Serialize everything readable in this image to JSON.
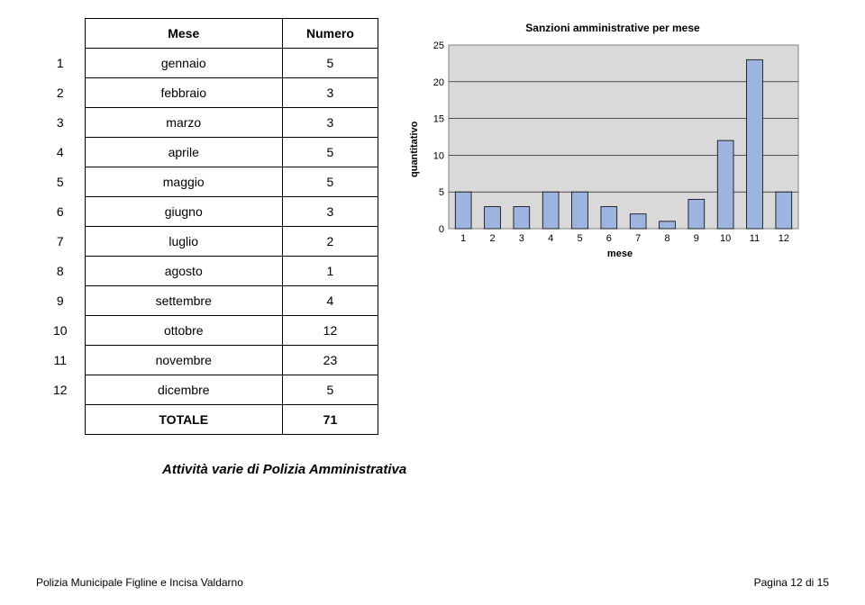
{
  "table": {
    "header_mese": "Mese",
    "header_numero": "Numero",
    "rows": [
      {
        "idx": "1",
        "mese": "gennaio",
        "numero": "5"
      },
      {
        "idx": "2",
        "mese": "febbraio",
        "numero": "3"
      },
      {
        "idx": "3",
        "mese": "marzo",
        "numero": "3"
      },
      {
        "idx": "4",
        "mese": "aprile",
        "numero": "5"
      },
      {
        "idx": "5",
        "mese": "maggio",
        "numero": "5"
      },
      {
        "idx": "6",
        "mese": "giugno",
        "numero": "3"
      },
      {
        "idx": "7",
        "mese": "luglio",
        "numero": "2"
      },
      {
        "idx": "8",
        "mese": "agosto",
        "numero": "1"
      },
      {
        "idx": "9",
        "mese": "settembre",
        "numero": "4"
      },
      {
        "idx": "10",
        "mese": "ottobre",
        "numero": "12"
      },
      {
        "idx": "11",
        "mese": "novembre",
        "numero": "23"
      },
      {
        "idx": "12",
        "mese": "dicembre",
        "numero": "5"
      }
    ],
    "total_label": "TOTALE",
    "total_value": "71"
  },
  "chart": {
    "type": "bar",
    "title": "Sanzioni amministrative per mese",
    "xlabel": "mese",
    "ylabel": "quantitativo",
    "categories": [
      "1",
      "2",
      "3",
      "4",
      "5",
      "6",
      "7",
      "8",
      "9",
      "10",
      "11",
      "12"
    ],
    "values": [
      5,
      3,
      3,
      5,
      5,
      3,
      2,
      1,
      4,
      12,
      23,
      5
    ],
    "ylim": [
      0,
      25
    ],
    "ytick_step": 5,
    "yticks": [
      "0",
      "5",
      "10",
      "15",
      "20",
      "25"
    ],
    "bar_fill": "#9db3e0",
    "bar_stroke": "#000000",
    "plot_bg": "#d9d9d9",
    "grid_color": "#000000",
    "axis_color": "#7f7f7f",
    "label_fontsize": 11,
    "tick_fontsize": 11,
    "title_fontsize": 12,
    "bar_width": 0.55
  },
  "subtitle": "Attività varie di Polizia Amministrativa",
  "footer": {
    "left": "Polizia Municipale Figline e Incisa Valdarno",
    "right": "Pagina 12 di 15"
  }
}
